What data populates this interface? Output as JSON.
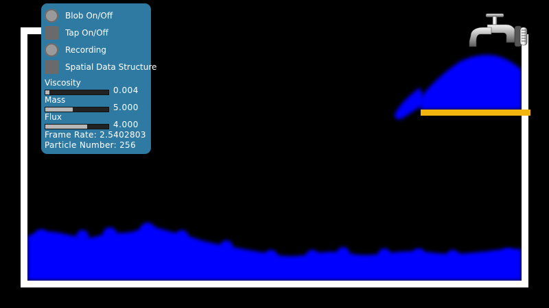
{
  "panel": {
    "toggles": [
      {
        "label": "Blob On/Off",
        "shape": "radio"
      },
      {
        "label": "Tap On/Off",
        "shape": "box"
      },
      {
        "label": "Recording",
        "shape": "radio"
      },
      {
        "label": "Spatial Data Structure",
        "shape": "box"
      }
    ],
    "sliders": [
      {
        "label": "Viscosity",
        "value": "0.004",
        "fraction": 0.06
      },
      {
        "label": "Mass",
        "value": "5.000",
        "fraction": 0.43
      },
      {
        "label": "Flux",
        "value": "4.000",
        "fraction": 0.66
      }
    ],
    "frame_rate": "Frame Rate: 2.5402803",
    "particle_number": "Particle Number: 256"
  },
  "colors": {
    "panel": "#2f7aa3",
    "fluid": "#0000ff",
    "ledge": "#f2b50f",
    "wall": "#ffffff",
    "background": "#000000"
  },
  "icons": {
    "faucet": "faucet-icon"
  }
}
